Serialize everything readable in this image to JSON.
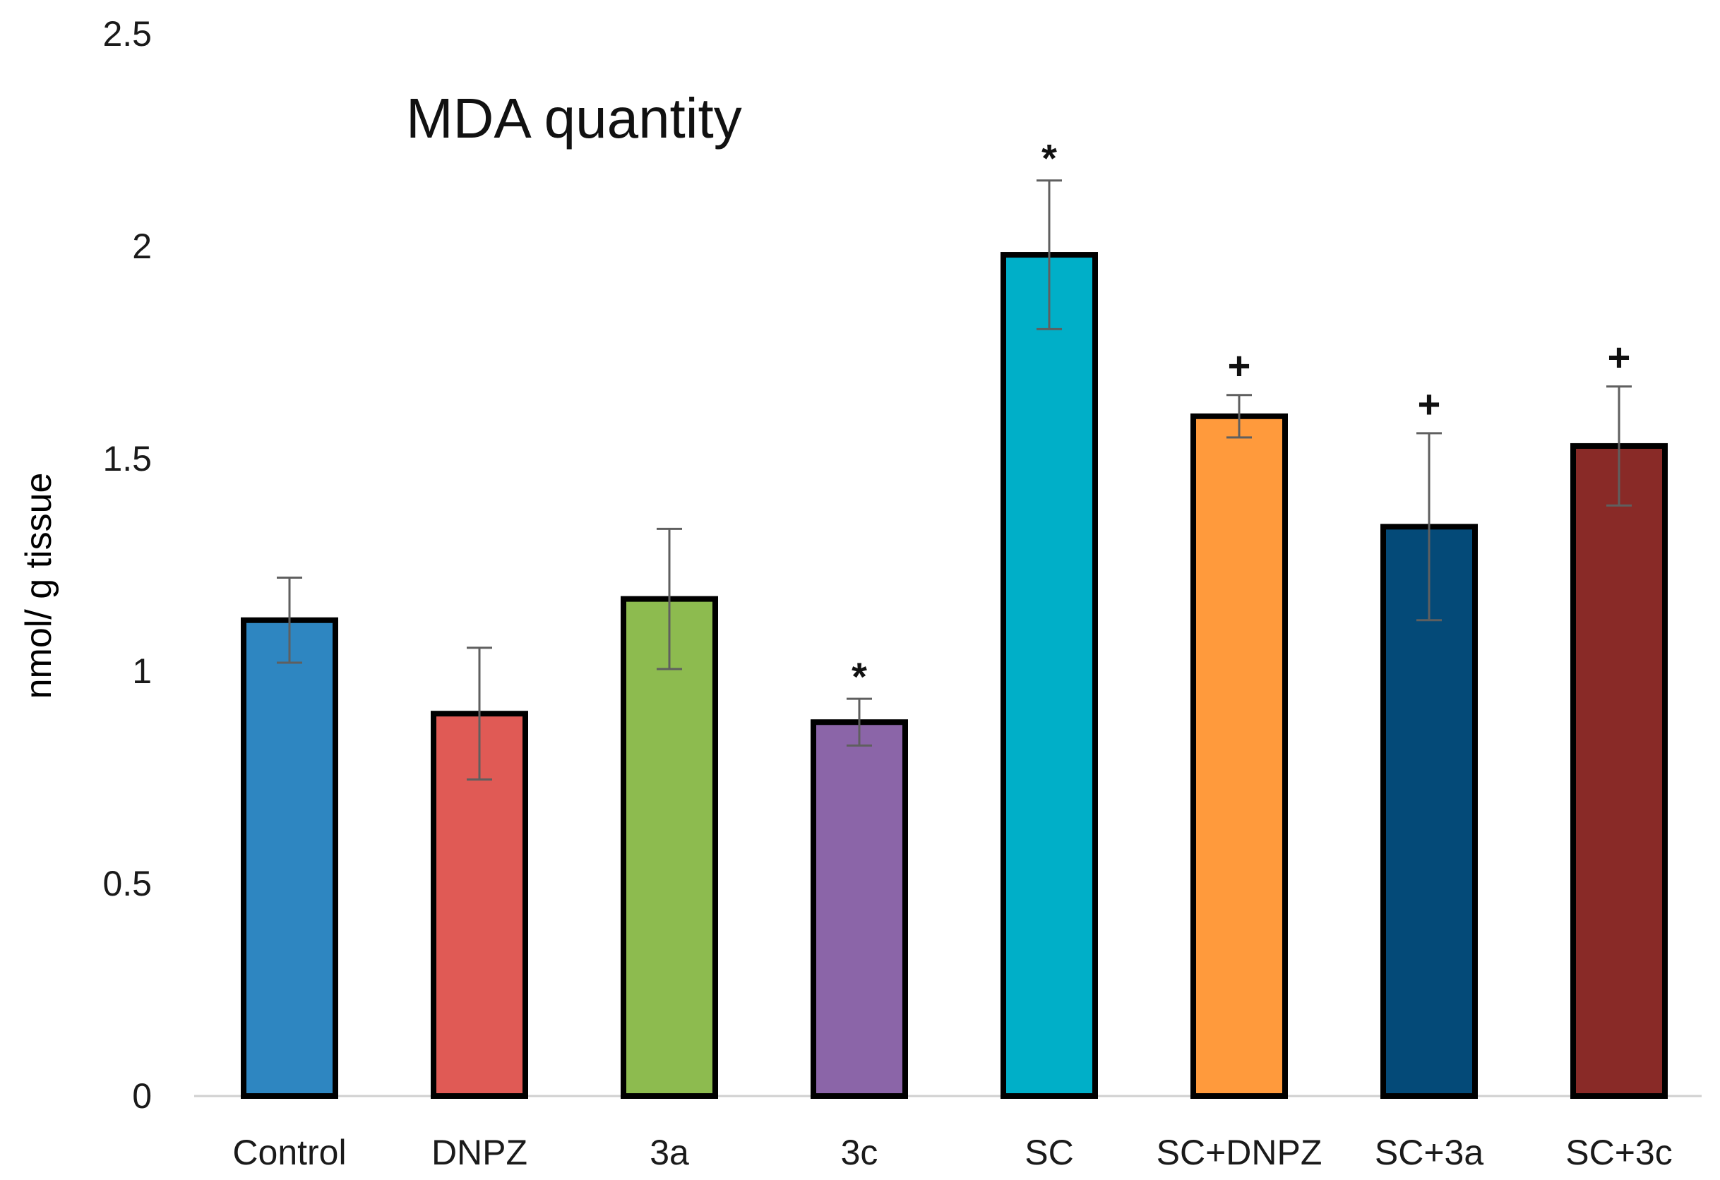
{
  "chart_data": {
    "type": "bar",
    "title": "MDA quantity",
    "xlabel": "",
    "ylabel": "nmol/ g tissue",
    "ylim": [
      0,
      2.5
    ],
    "yticks": [
      "0",
      "0.5",
      "1",
      "1.5",
      "2",
      "2.5"
    ],
    "grid": false,
    "legend": "none",
    "categories": [
      "Control",
      "DNPZ",
      "3a",
      "3c",
      "SC",
      "SC+DNPZ",
      "SC+3a",
      "SC+3c"
    ],
    "values": [
      1.12,
      0.9,
      1.17,
      0.88,
      1.98,
      1.6,
      1.34,
      1.53
    ],
    "errors": [
      0.1,
      0.155,
      0.165,
      0.055,
      0.175,
      0.05,
      0.22,
      0.14
    ],
    "annotations": [
      "",
      "",
      "",
      "*",
      "*",
      "+",
      "+",
      "+"
    ],
    "colors": [
      "#2E86C1",
      "#E05A55",
      "#8DBB4F",
      "#8B65A8",
      "#00AFC8",
      "#FF9A3C",
      "#044A78",
      "#892A27"
    ]
  }
}
